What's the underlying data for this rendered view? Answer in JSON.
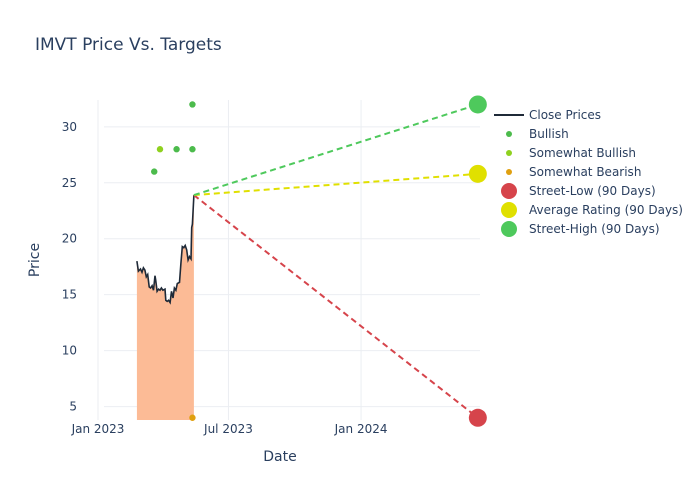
{
  "chart_data": {
    "type": "line",
    "title": "IMVT Price Vs. Targets",
    "xlabel": "Date",
    "ylabel": "Price",
    "x_tick_labels": [
      "Jan 2023",
      "Jul 2023",
      "Jan 2024"
    ],
    "y_ticks": [
      5,
      10,
      15,
      20,
      25,
      30
    ],
    "xlim": [
      "2022-12-07",
      "2024-06-14"
    ],
    "ylim": [
      3.8,
      32.4
    ],
    "grid": true,
    "legend_position": "top-right",
    "series": [
      {
        "name": "Close Prices",
        "kind": "line-area",
        "color": "#1f2a38",
        "fill_color": "#fcbb96",
        "points": [
          [
            "2023-02-24",
            18.0
          ],
          [
            "2023-02-26",
            17.1
          ],
          [
            "2023-03-01",
            17.3
          ],
          [
            "2023-03-03",
            17.0
          ],
          [
            "2023-03-05",
            17.4
          ],
          [
            "2023-03-07",
            17.2
          ],
          [
            "2023-03-09",
            16.6
          ],
          [
            "2023-03-11",
            16.8
          ],
          [
            "2023-03-13",
            15.7
          ],
          [
            "2023-03-15",
            15.6
          ],
          [
            "2023-03-17",
            15.8
          ],
          [
            "2023-03-19",
            15.4
          ],
          [
            "2023-03-21",
            16.7
          ],
          [
            "2023-03-22",
            16.3
          ],
          [
            "2023-03-24",
            15.3
          ],
          [
            "2023-03-26",
            15.5
          ],
          [
            "2023-03-28",
            15.4
          ],
          [
            "2023-03-30",
            15.6
          ],
          [
            "2023-04-01",
            15.4
          ],
          [
            "2023-04-04",
            15.5
          ],
          [
            "2023-04-05",
            14.5
          ],
          [
            "2023-04-07",
            14.4
          ],
          [
            "2023-04-09",
            14.5
          ],
          [
            "2023-04-11",
            14.3
          ],
          [
            "2023-04-13",
            15.3
          ],
          [
            "2023-04-15",
            14.7
          ],
          [
            "2023-04-17",
            15.6
          ],
          [
            "2023-04-19",
            15.4
          ],
          [
            "2023-04-21",
            16.0
          ],
          [
            "2023-04-24",
            16.1
          ],
          [
            "2023-04-26",
            17.8
          ],
          [
            "2023-04-28",
            19.3
          ],
          [
            "2023-04-30",
            19.2
          ],
          [
            "2023-05-02",
            19.4
          ],
          [
            "2023-05-04",
            19.0
          ],
          [
            "2023-05-06",
            18.1
          ],
          [
            "2023-05-08",
            18.4
          ],
          [
            "2023-05-10",
            18.2
          ],
          [
            "2023-05-11",
            21.0
          ],
          [
            "2023-05-12",
            21.3
          ],
          [
            "2023-05-14",
            23.9
          ]
        ]
      },
      {
        "name": "Bullish",
        "kind": "markers",
        "color": "#4cbb4c",
        "points": [
          [
            "2023-05-12",
            32.0
          ],
          [
            "2023-05-12",
            28.0
          ],
          [
            "2023-04-20",
            28.0
          ],
          [
            "2023-03-20",
            26.0
          ]
        ]
      },
      {
        "name": "Somewhat Bullish",
        "kind": "markers",
        "color": "#8fd11f",
        "points": [
          [
            "2023-03-28",
            28.0
          ]
        ]
      },
      {
        "name": "Somewhat Bearish",
        "kind": "markers",
        "color": "#e0a010",
        "points": [
          [
            "2023-05-12",
            4.0
          ]
        ]
      },
      {
        "name": "Street-Low (90 Days)",
        "kind": "target",
        "color": "#d6444b",
        "points": [
          [
            "2023-05-14",
            23.9
          ],
          [
            "2024-06-11",
            4.0
          ]
        ]
      },
      {
        "name": "Average Rating (90 Days)",
        "kind": "target",
        "color": "#e0e000",
        "points": [
          [
            "2023-05-14",
            23.9
          ],
          [
            "2024-06-11",
            25.8
          ]
        ]
      },
      {
        "name": "Street-High (90 Days)",
        "kind": "target",
        "color": "#4ec95c",
        "points": [
          [
            "2023-05-14",
            23.9
          ],
          [
            "2024-06-11",
            32.0
          ]
        ]
      }
    ]
  }
}
